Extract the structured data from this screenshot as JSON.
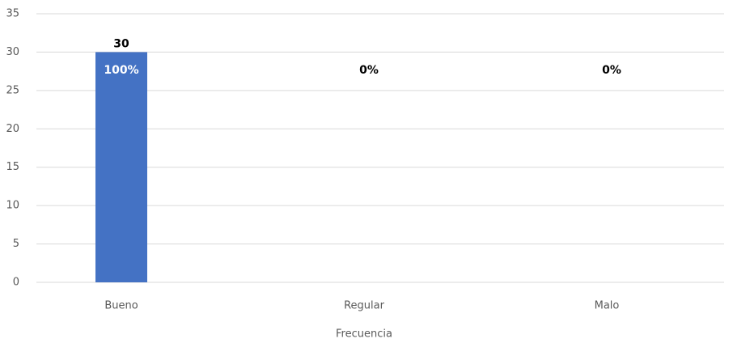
{
  "chart_data": {
    "type": "bar",
    "categories": [
      "Bueno",
      "Regular",
      "Malo"
    ],
    "series": [
      {
        "name": "Frecuencia",
        "color": "#4472c4",
        "values": [
          30,
          0,
          0
        ]
      }
    ],
    "percent": {
      "values": [
        100,
        0,
        0
      ],
      "value_labels": [
        "100%",
        "0%",
        "0%"
      ]
    },
    "ylim": [
      0,
      35
    ],
    "yticks": [
      0,
      5,
      10,
      15,
      20,
      25,
      30,
      35
    ],
    "grid": true
  }
}
